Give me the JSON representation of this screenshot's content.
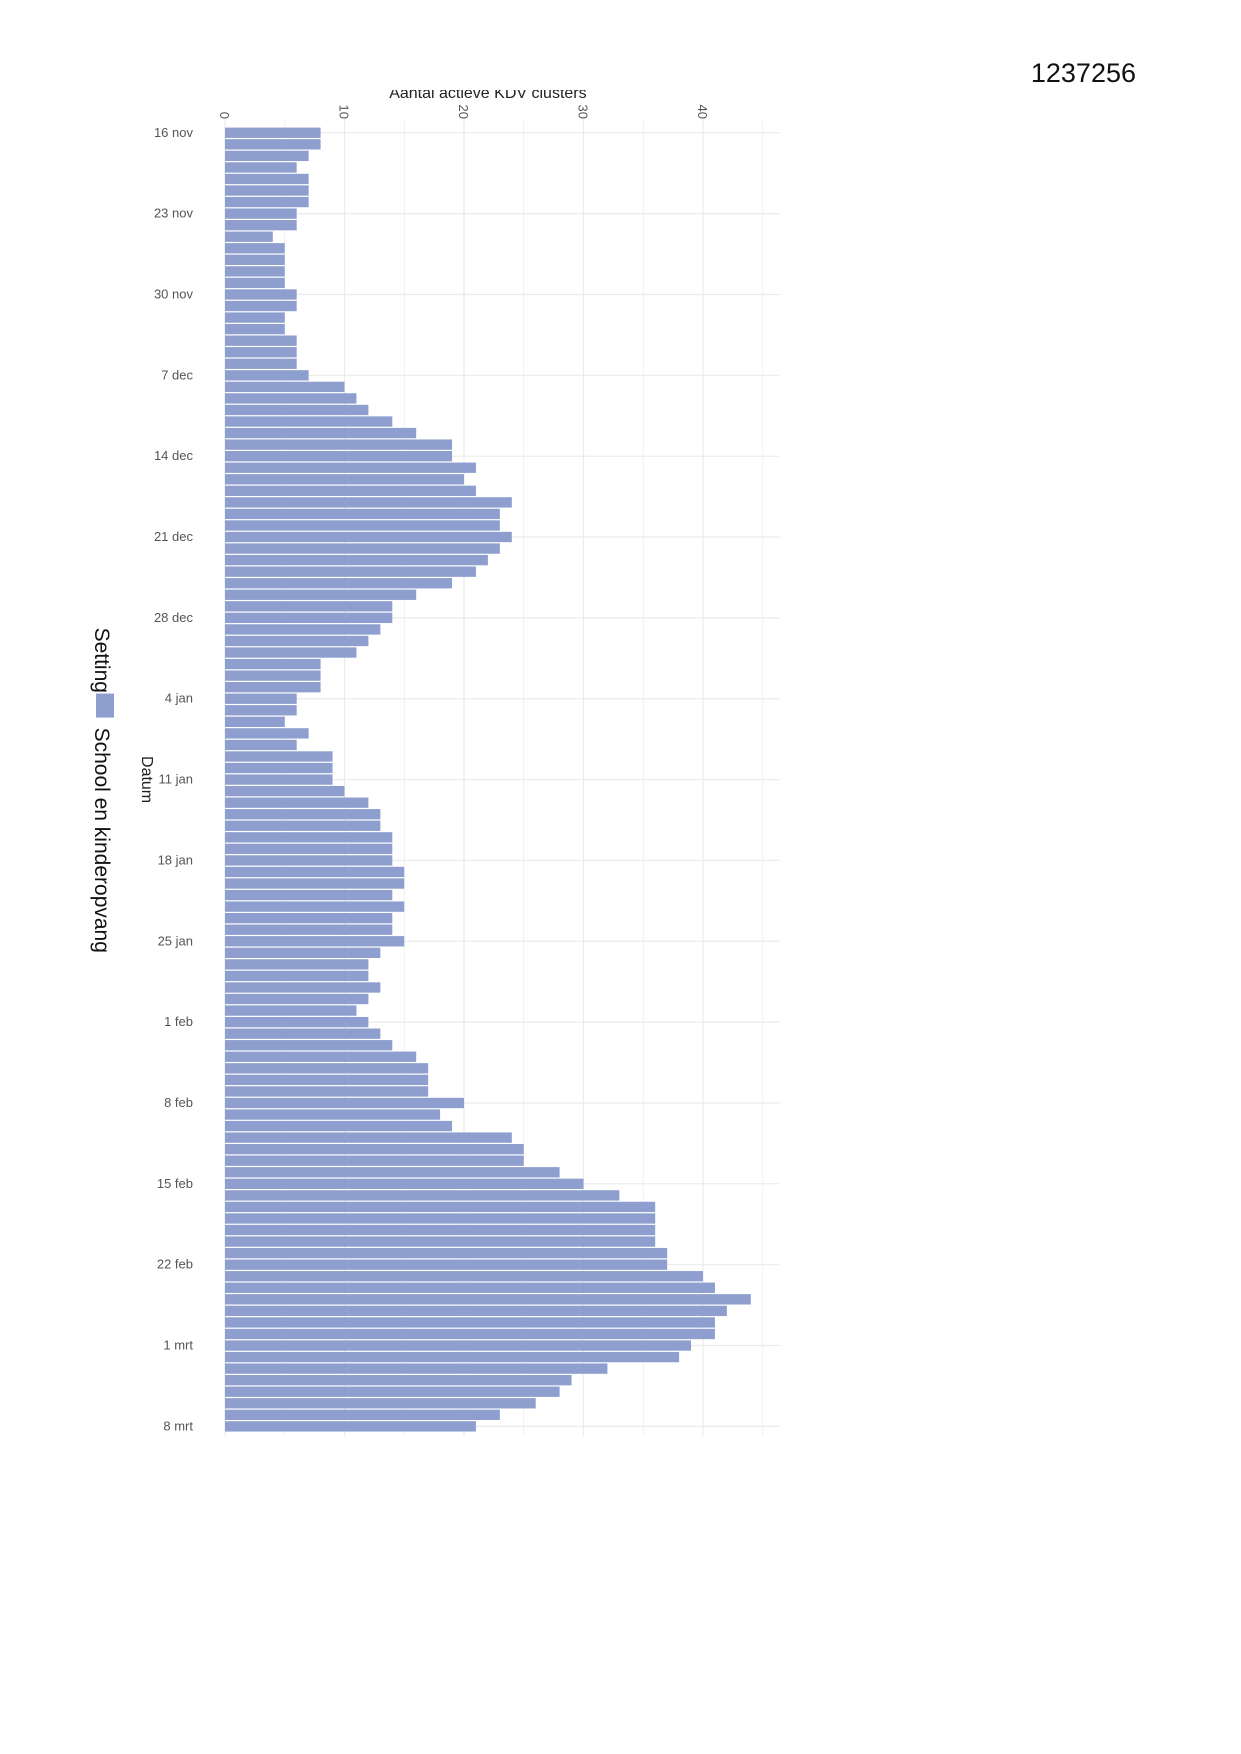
{
  "document": {
    "id": "1237256"
  },
  "colors": {
    "bar": "#8e9fcf",
    "grid": "#ebebeb",
    "text": "#555555"
  },
  "chart_data": {
    "type": "bar",
    "orientation": "horizontal",
    "title": "",
    "xlabel": "Aantal actieve KDV clusters",
    "ylabel": "Datum",
    "xlim": [
      0,
      46
    ],
    "x_ticks": [
      0,
      10,
      20,
      30,
      40
    ],
    "y_tick_labels": [
      "16 nov",
      "23 nov",
      "30 nov",
      "7 dec",
      "14 dec",
      "21 dec",
      "28 dec",
      "4 jan",
      "11 jan",
      "18 jan",
      "25 jan",
      "1 feb",
      "8 feb",
      "15 feb",
      "22 feb",
      "1 mrt",
      "8 mrt"
    ],
    "legend": {
      "title": "Setting",
      "placement": "left",
      "entries": [
        "School en kinderopvang"
      ]
    },
    "grid": true,
    "start_date": "16 nov",
    "series": [
      {
        "name": "School en kinderopvang",
        "values": [
          8,
          8,
          7,
          6,
          7,
          7,
          7,
          6,
          6,
          4,
          5,
          5,
          5,
          5,
          6,
          6,
          5,
          5,
          6,
          6,
          6,
          7,
          10,
          11,
          12,
          14,
          16,
          19,
          19,
          21,
          20,
          21,
          24,
          23,
          23,
          24,
          23,
          22,
          21,
          19,
          16,
          14,
          14,
          13,
          12,
          11,
          8,
          8,
          8,
          6,
          6,
          5,
          7,
          6,
          9,
          9,
          9,
          10,
          12,
          13,
          13,
          14,
          14,
          14,
          15,
          15,
          14,
          15,
          14,
          14,
          15,
          13,
          12,
          12,
          13,
          12,
          11,
          12,
          13,
          14,
          16,
          17,
          17,
          17,
          20,
          18,
          19,
          24,
          25,
          25,
          28,
          30,
          33,
          36,
          36,
          36,
          36,
          37,
          37,
          40,
          41,
          44,
          42,
          41,
          41,
          39,
          38,
          32,
          29,
          28,
          26,
          23,
          21
        ]
      }
    ]
  }
}
